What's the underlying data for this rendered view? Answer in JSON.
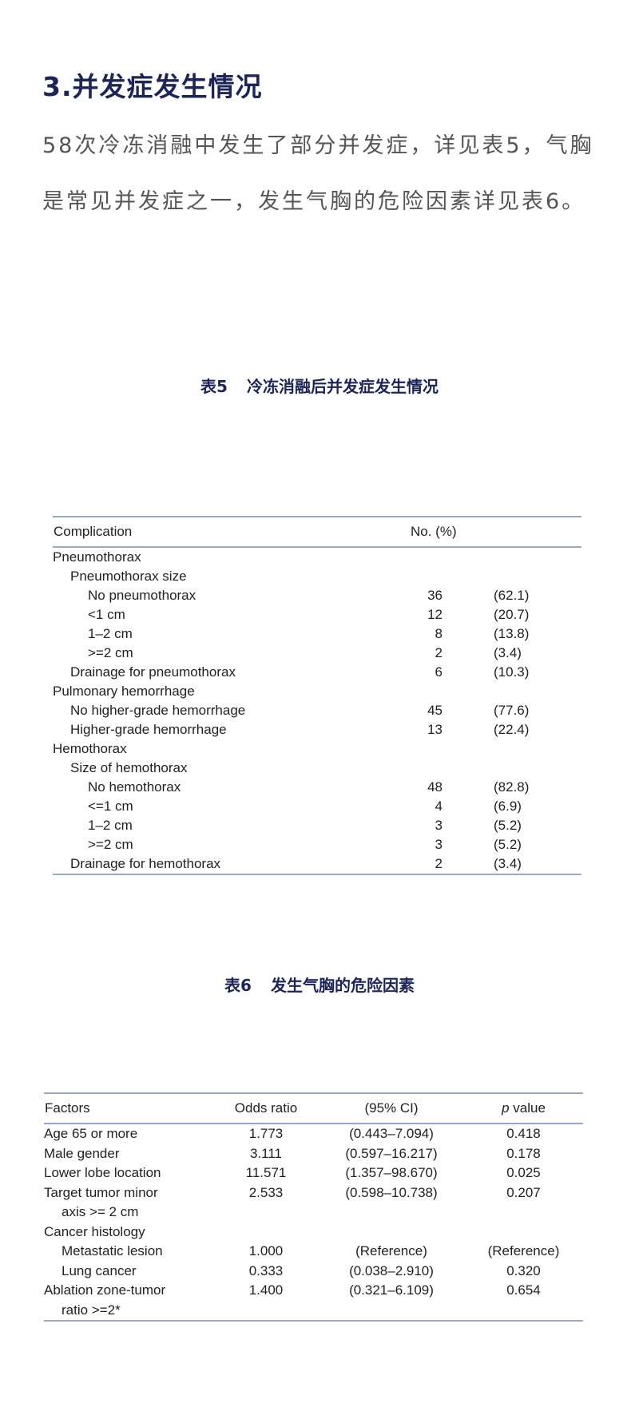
{
  "heading": "3.并发症发生情况",
  "paragraph": "58次冷冻消融中发生了部分并发症，详见表5，气胸是常见并发症之一，发生气胸的危险因素详见表6。",
  "colors": {
    "heading": "#1c2559",
    "body_text": "#555555",
    "table_rule": "#9aa8d0"
  },
  "table5": {
    "caption_num": "表5",
    "caption_title": "冷冻消融后并发症发生情况",
    "headers": {
      "complication": "Complication",
      "no_pct": "No. (%)"
    },
    "rows": [
      {
        "label": "Pneumothorax",
        "level": 0,
        "n": "",
        "pct": ""
      },
      {
        "label": "Pneumothorax size",
        "level": 1,
        "n": "",
        "pct": ""
      },
      {
        "label": "No pneumothorax",
        "level": 2,
        "n": "36",
        "pct": "(62.1)"
      },
      {
        "label": "<1 cm",
        "level": 2,
        "n": "12",
        "pct": "(20.7)"
      },
      {
        "label": "1–2 cm",
        "level": 2,
        "n": "8",
        "pct": "(13.8)"
      },
      {
        "label": ">=2 cm",
        "level": 2,
        "n": "2",
        "pct": "(3.4)"
      },
      {
        "label": "Drainage for pneumothorax",
        "level": 1,
        "n": "6",
        "pct": "(10.3)"
      },
      {
        "label": "Pulmonary hemorrhage",
        "level": 0,
        "n": "",
        "pct": ""
      },
      {
        "label": "No higher-grade hemorrhage",
        "level": 1,
        "n": "45",
        "pct": "(77.6)"
      },
      {
        "label": "Higher-grade hemorrhage",
        "level": 1,
        "n": "13",
        "pct": "(22.4)"
      },
      {
        "label": "Hemothorax",
        "level": 0,
        "n": "",
        "pct": ""
      },
      {
        "label": "Size of hemothorax",
        "level": 1,
        "n": "",
        "pct": ""
      },
      {
        "label": "No hemothorax",
        "level": 2,
        "n": "48",
        "pct": "(82.8)"
      },
      {
        "label": "<=1 cm",
        "level": 2,
        "n": "4",
        "pct": "(6.9)"
      },
      {
        "label": "1–2 cm",
        "level": 2,
        "n": "3",
        "pct": "(5.2)"
      },
      {
        "label": ">=2 cm",
        "level": 2,
        "n": "3",
        "pct": "(5.2)"
      },
      {
        "label": "Drainage for hemothorax",
        "level": 1,
        "n": "2",
        "pct": "(3.4)"
      }
    ]
  },
  "table6": {
    "caption_num": "表6",
    "caption_title": "发生气胸的危险因素",
    "headers": {
      "factors": "Factors",
      "or": "Odds ratio",
      "ci": "(95% CI)",
      "p_italic": "p",
      "p_rest": " value"
    },
    "rows": [
      {
        "label": "Age 65 or more",
        "level": 0,
        "or": "1.773",
        "ci": "(0.443–7.094)",
        "p": "0.418"
      },
      {
        "label": "Male gender",
        "level": 0,
        "or": "3.111",
        "ci": "(0.597–16.217)",
        "p": "0.178"
      },
      {
        "label": "Lower lobe location",
        "level": 0,
        "or": "11.571",
        "ci": "(1.357–98.670)",
        "p": "0.025"
      },
      {
        "label": "Target tumor minor",
        "level": 0,
        "or": "2.533",
        "ci": "(0.598–10.738)",
        "p": "0.207"
      },
      {
        "label": "axis >= 2 cm",
        "level": 1,
        "or": "",
        "ci": "",
        "p": ""
      },
      {
        "label": "Cancer histology",
        "level": 0,
        "or": "",
        "ci": "",
        "p": ""
      },
      {
        "label": "Metastatic lesion",
        "level": 1,
        "or": "1.000",
        "ci": "(Reference)",
        "p": "(Reference)"
      },
      {
        "label": "Lung cancer",
        "level": 1,
        "or": "0.333",
        "ci": "(0.038–2.910)",
        "p": "0.320"
      },
      {
        "label": "Ablation zone-tumor",
        "level": 0,
        "or": "1.400",
        "ci": "(0.321–6.109)",
        "p": "0.654"
      },
      {
        "label": "ratio >=2*",
        "level": 1,
        "or": "",
        "ci": "",
        "p": ""
      }
    ]
  }
}
